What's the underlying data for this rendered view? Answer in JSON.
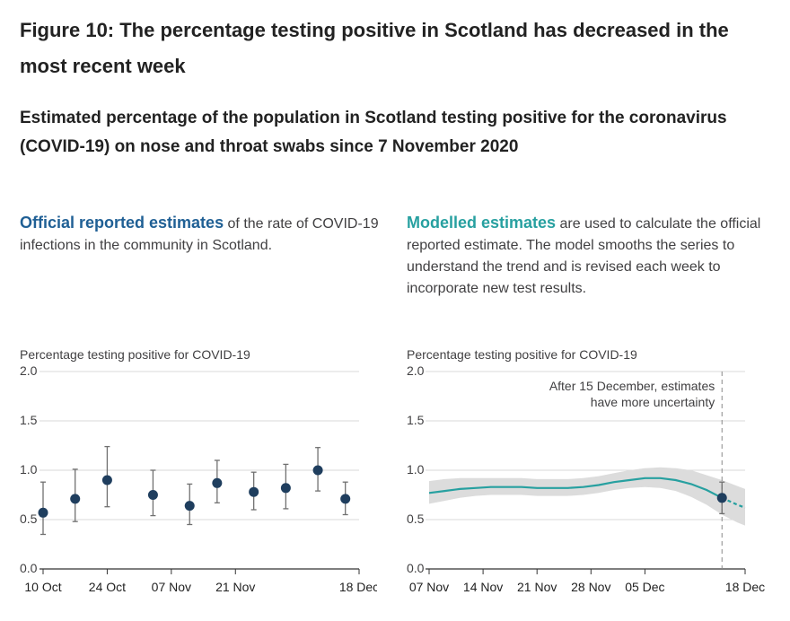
{
  "figure_title": "Figure 10: The percentage testing positive in Scotland has decreased in the most recent week",
  "subtitle": "Estimated percentage of the population in Scotland testing positive for the coronavirus (COVID-19) on nose and throat swabs since 7 November 2020",
  "left_desc": {
    "highlight": "Official reported estimates",
    "text": " of the rate of COVID-19 infections in the community in Scotland."
  },
  "right_desc": {
    "highlight": "Modelled estimates",
    "text": " are used to calculate the official reported estimate. The model smooths the series to understand the trend and is revised each week to incorporate new test results."
  },
  "colors": {
    "navy": "#206095",
    "point": "#1f3e5e",
    "teal": "#27a0a0",
    "band": "#dcdcdc",
    "axis": "#333333"
  },
  "chart_data": [
    {
      "type": "scatter",
      "title": "Official reported estimates",
      "ylabel": "Percentage testing positive for COVID-19",
      "ylim": [
        0,
        2
      ],
      "yticks": [
        "0.0",
        "0.5",
        "1.0",
        "1.5",
        "2.0"
      ],
      "xticks": [
        "10 Oct",
        "24 Oct",
        "07 Nov",
        "21 Nov",
        "18 Dec"
      ],
      "xtick_days": [
        0,
        14,
        28,
        42,
        69
      ],
      "xrange_days": [
        0,
        69
      ],
      "points": [
        {
          "day": 0,
          "value": 0.57,
          "lower": 0.35,
          "upper": 0.88
        },
        {
          "day": 7,
          "value": 0.71,
          "lower": 0.48,
          "upper": 1.01
        },
        {
          "day": 14,
          "value": 0.9,
          "lower": 0.63,
          "upper": 1.24
        },
        {
          "day": 24,
          "value": 0.75,
          "lower": 0.54,
          "upper": 1.0
        },
        {
          "day": 32,
          "value": 0.64,
          "lower": 0.45,
          "upper": 0.86
        },
        {
          "day": 38,
          "value": 0.87,
          "lower": 0.67,
          "upper": 1.1
        },
        {
          "day": 46,
          "value": 0.78,
          "lower": 0.6,
          "upper": 0.98
        },
        {
          "day": 53,
          "value": 0.82,
          "lower": 0.61,
          "upper": 1.06
        },
        {
          "day": 60,
          "value": 1.0,
          "lower": 0.79,
          "upper": 1.23
        },
        {
          "day": 66,
          "value": 0.71,
          "lower": 0.55,
          "upper": 0.88
        }
      ]
    },
    {
      "type": "line",
      "title": "Modelled estimates",
      "ylabel": "Percentage testing positive for COVID-19",
      "ylim": [
        0,
        2
      ],
      "yticks": [
        "0.0",
        "0.5",
        "1.0",
        "1.5",
        "2.0"
      ],
      "xticks": [
        "07 Nov",
        "14 Nov",
        "21 Nov",
        "28 Nov",
        "05 Dec",
        "18 Dec"
      ],
      "xtick_days": [
        0,
        7,
        14,
        21,
        28,
        41
      ],
      "xrange_days": [
        0,
        41
      ],
      "annotation": {
        "line1": "After 15 December, estimates",
        "line2": "have more uncertainty",
        "day": 38
      },
      "series": [
        {
          "name": "Modelled estimate",
          "x": [
            0,
            2,
            4,
            6,
            8,
            10,
            12,
            14,
            16,
            18,
            20,
            22,
            24,
            26,
            28,
            30,
            32,
            34,
            36,
            38,
            40,
            41
          ],
          "y": [
            0.77,
            0.79,
            0.81,
            0.82,
            0.83,
            0.83,
            0.83,
            0.82,
            0.82,
            0.82,
            0.83,
            0.85,
            0.88,
            0.9,
            0.92,
            0.92,
            0.9,
            0.86,
            0.8,
            0.72,
            0.65,
            0.62
          ],
          "lower": [
            0.66,
            0.69,
            0.72,
            0.74,
            0.75,
            0.75,
            0.75,
            0.74,
            0.74,
            0.74,
            0.75,
            0.77,
            0.8,
            0.82,
            0.83,
            0.82,
            0.79,
            0.73,
            0.65,
            0.55,
            0.47,
            0.44
          ],
          "upper": [
            0.89,
            0.91,
            0.92,
            0.92,
            0.92,
            0.92,
            0.92,
            0.91,
            0.91,
            0.91,
            0.92,
            0.94,
            0.97,
            1.0,
            1.02,
            1.03,
            1.02,
            1.0,
            0.95,
            0.9,
            0.84,
            0.81
          ]
        }
      ],
      "latest_point": {
        "day": 38,
        "value": 0.72,
        "lower": 0.56,
        "upper": 0.88
      }
    }
  ]
}
